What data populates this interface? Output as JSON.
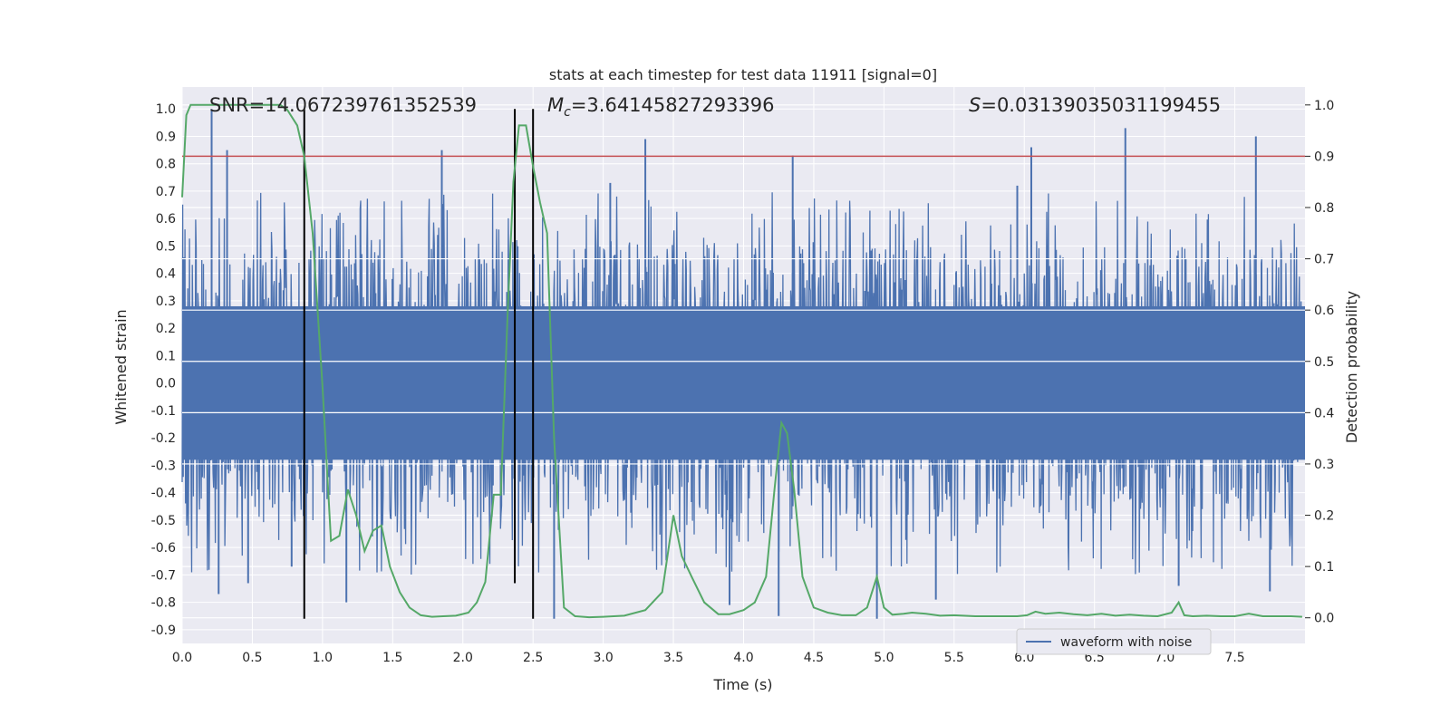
{
  "chart_data": {
    "type": "line",
    "title": "stats at each timestep for test data 11911 [signal=0]",
    "xlabel": "Time (s)",
    "ylabel": "Whitened strain",
    "y2label": "Detection probability",
    "xlim": [
      0,
      8
    ],
    "ylim": [
      -0.95,
      1.08
    ],
    "y2lim": [
      -0.05,
      1.035
    ],
    "grid": true,
    "xticks": [
      0.0,
      0.5,
      1.0,
      1.5,
      2.0,
      2.5,
      3.0,
      3.5,
      4.0,
      4.5,
      5.0,
      5.5,
      6.0,
      6.5,
      7.0,
      7.5
    ],
    "xtick_labels": [
      "0.0",
      "0.5",
      "1.0",
      "1.5",
      "2.0",
      "2.5",
      "3.0",
      "3.5",
      "4.0",
      "4.5",
      "5.0",
      "5.5",
      "6.0",
      "6.5",
      "7.0",
      "7.5"
    ],
    "yticks": [
      1.0,
      0.9,
      0.8,
      0.7,
      0.6,
      0.5,
      0.4,
      0.3,
      0.2,
      0.1,
      0.0,
      -0.1,
      -0.2,
      -0.3,
      -0.4,
      -0.5,
      -0.6,
      -0.7,
      -0.8,
      -0.9
    ],
    "ytick_labels": [
      "1.0",
      "0.9",
      "0.8",
      "0.7",
      "0.6",
      "0.5",
      "0.4",
      "0.3",
      "0.2",
      "0.1",
      "0.0",
      "-0.1",
      "-0.2",
      "-0.3",
      "-0.4",
      "-0.5",
      "-0.6",
      "-0.7",
      "-0.8",
      "-0.9"
    ],
    "y2ticks": [
      1.0,
      0.9,
      0.8,
      0.7,
      0.6,
      0.5,
      0.4,
      0.3,
      0.2,
      0.1,
      0.0
    ],
    "y2tick_labels": [
      "1.0",
      "0.9",
      "0.8",
      "0.7",
      "0.6",
      "0.5",
      "0.4",
      "0.3",
      "0.2",
      "0.1",
      "0.0"
    ],
    "annotations": {
      "snr": "SNR=14.067239761352539",
      "mc_symbol": "M",
      "mc_sub": "c",
      "mc_value": "=3.64145827293396",
      "s_symbol": "S",
      "s_value": "=0.03139035031199455"
    },
    "legend": {
      "label": "waveform with noise",
      "placement": "lower-right"
    },
    "threshold_y2": 0.9,
    "vlines": [
      {
        "x": 0.87,
        "y_top": 1.0,
        "y_bottom": -0.86
      },
      {
        "x": 2.37,
        "y_top": 1.0,
        "y_bottom": -0.73
      },
      {
        "x": 2.5,
        "y_top": 1.0,
        "y_bottom": -0.86
      }
    ],
    "series": [
      {
        "name": "waveform with noise",
        "axis": "left",
        "color": "#4c72b0",
        "style": "noise",
        "band": [
          -0.28,
          0.28
        ],
        "sample_step": 0.004,
        "peaks": [
          {
            "x": 0.21,
            "y": 1.0
          },
          {
            "x": 0.32,
            "y": 0.85
          },
          {
            "x": 0.26,
            "y": -0.77
          },
          {
            "x": 0.47,
            "y": -0.73
          },
          {
            "x": 1.85,
            "y": 0.85
          },
          {
            "x": 3.3,
            "y": 0.89
          },
          {
            "x": 4.35,
            "y": 0.83
          },
          {
            "x": 6.05,
            "y": 0.86
          },
          {
            "x": 6.72,
            "y": 0.93
          },
          {
            "x": 7.65,
            "y": 0.9
          },
          {
            "x": 2.65,
            "y": -0.86
          },
          {
            "x": 1.17,
            "y": -0.8
          },
          {
            "x": 3.9,
            "y": -0.81
          },
          {
            "x": 4.25,
            "y": -0.85
          },
          {
            "x": 5.37,
            "y": -0.79
          },
          {
            "x": 7.1,
            "y": -0.74
          },
          {
            "x": 7.75,
            "y": -0.76
          },
          {
            "x": 0.78,
            "y": -0.67
          },
          {
            "x": 3.05,
            "y": 0.73
          },
          {
            "x": 5.95,
            "y": 0.72
          },
          {
            "x": 4.95,
            "y": -0.86
          }
        ]
      },
      {
        "name": "detection probability",
        "axis": "right",
        "color": "#55a868",
        "x": [
          0.0,
          0.03,
          0.06,
          0.12,
          0.2,
          0.3,
          0.4,
          0.5,
          0.6,
          0.7,
          0.75,
          0.82,
          0.87,
          0.93,
          1.0,
          1.06,
          1.12,
          1.18,
          1.24,
          1.3,
          1.36,
          1.42,
          1.48,
          1.55,
          1.62,
          1.7,
          1.78,
          1.86,
          1.95,
          2.04,
          2.1,
          2.16,
          2.22,
          2.27,
          2.32,
          2.36,
          2.4,
          2.45,
          2.5,
          2.55,
          2.6,
          2.65,
          2.72,
          2.8,
          2.9,
          3.0,
          3.15,
          3.3,
          3.42,
          3.5,
          3.56,
          3.63,
          3.72,
          3.82,
          3.9,
          4.0,
          4.08,
          4.16,
          4.22,
          4.27,
          4.31,
          4.36,
          4.42,
          4.5,
          4.6,
          4.7,
          4.8,
          4.88,
          4.95,
          5.0,
          5.06,
          5.14,
          5.2,
          5.3,
          5.4,
          5.5,
          5.65,
          5.8,
          5.95,
          6.02,
          6.08,
          6.15,
          6.25,
          6.35,
          6.45,
          6.55,
          6.65,
          6.75,
          6.85,
          6.95,
          7.05,
          7.1,
          7.14,
          7.2,
          7.3,
          7.4,
          7.5,
          7.6,
          7.7,
          7.8,
          7.9,
          7.98
        ],
        "values": [
          0.82,
          0.98,
          1.0,
          1.0,
          1.0,
          1.0,
          1.0,
          1.0,
          1.0,
          1.0,
          0.99,
          0.96,
          0.9,
          0.75,
          0.45,
          0.15,
          0.16,
          0.25,
          0.2,
          0.13,
          0.17,
          0.18,
          0.1,
          0.05,
          0.02,
          0.005,
          0.002,
          0.003,
          0.004,
          0.01,
          0.03,
          0.07,
          0.24,
          0.24,
          0.6,
          0.85,
          0.96,
          0.96,
          0.88,
          0.81,
          0.75,
          0.35,
          0.02,
          0.003,
          0.001,
          0.002,
          0.004,
          0.015,
          0.05,
          0.2,
          0.12,
          0.08,
          0.03,
          0.007,
          0.007,
          0.015,
          0.03,
          0.08,
          0.25,
          0.38,
          0.36,
          0.25,
          0.08,
          0.02,
          0.01,
          0.005,
          0.005,
          0.02,
          0.08,
          0.02,
          0.006,
          0.008,
          0.01,
          0.008,
          0.004,
          0.005,
          0.003,
          0.003,
          0.003,
          0.005,
          0.012,
          0.008,
          0.01,
          0.007,
          0.005,
          0.008,
          0.004,
          0.006,
          0.004,
          0.003,
          0.01,
          0.03,
          0.005,
          0.003,
          0.004,
          0.003,
          0.003,
          0.008,
          0.003,
          0.003,
          0.003,
          0.002
        ]
      }
    ]
  }
}
